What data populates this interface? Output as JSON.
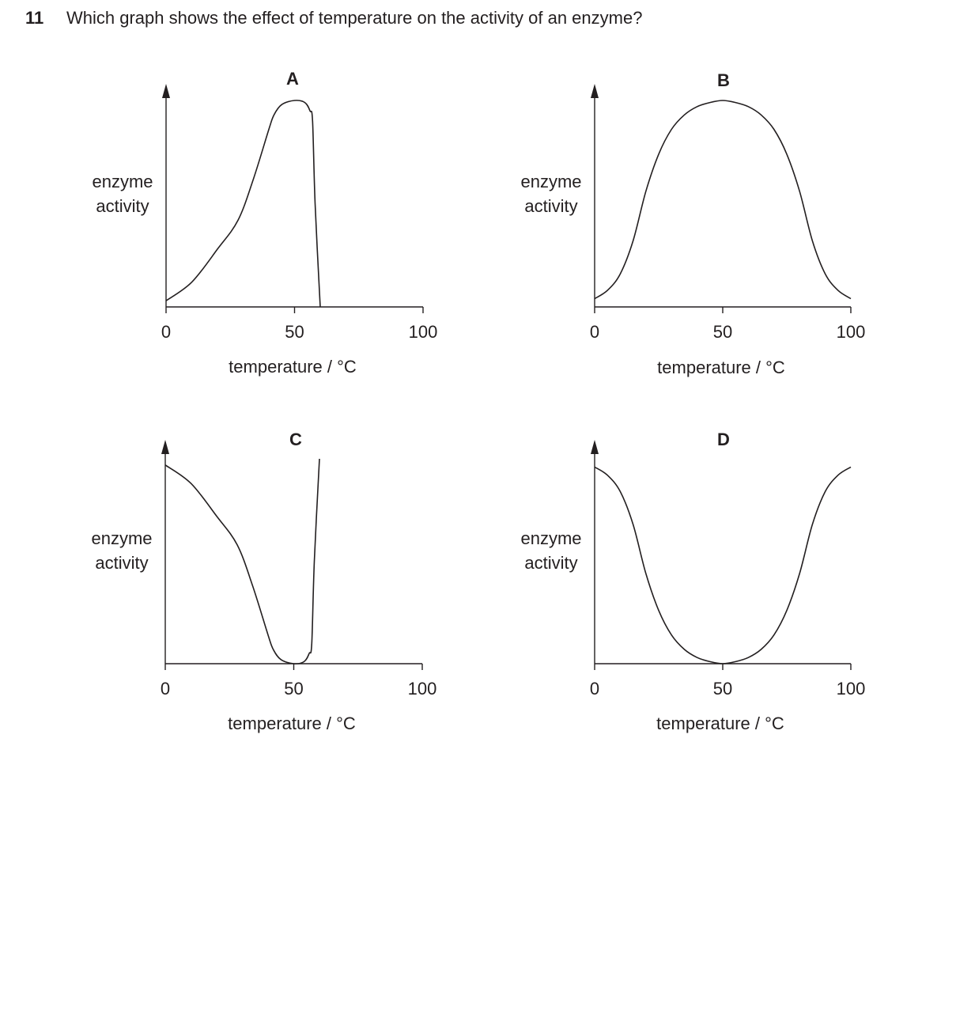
{
  "question": {
    "number": "11",
    "text": "Which graph shows the effect of temperature on the activity of an enzyme?"
  },
  "chart_data": [
    {
      "type": "line",
      "title": "A",
      "xlabel": "temperature / °C",
      "ylabel_lines": [
        "enzyme",
        "activity"
      ],
      "xticks": [
        0,
        50,
        100
      ],
      "xlim": [
        0,
        100
      ],
      "ylim": [
        0,
        1
      ],
      "series": [
        {
          "x": [
            0,
            10,
            20,
            28,
            34,
            40,
            42,
            45,
            50,
            54,
            56,
            57,
            58,
            60
          ],
          "values": [
            0.03,
            0.12,
            0.28,
            0.42,
            0.62,
            0.86,
            0.93,
            0.98,
            1.0,
            0.99,
            0.95,
            0.9,
            0.5,
            0.0
          ]
        }
      ]
    },
    {
      "type": "line",
      "title": "B",
      "xlabel": "temperature / °C",
      "ylabel_lines": [
        "enzyme",
        "activity"
      ],
      "xticks": [
        0,
        50,
        100
      ],
      "xlim": [
        0,
        100
      ],
      "ylim": [
        0,
        1
      ],
      "series": [
        {
          "x": [
            0,
            5,
            10,
            15,
            20,
            25,
            30,
            35,
            40,
            45,
            50,
            55,
            60,
            65,
            70,
            75,
            80,
            85,
            90,
            95,
            100
          ],
          "values": [
            0.04,
            0.08,
            0.16,
            0.32,
            0.56,
            0.74,
            0.86,
            0.93,
            0.97,
            0.99,
            1.0,
            0.99,
            0.97,
            0.93,
            0.86,
            0.74,
            0.56,
            0.32,
            0.16,
            0.08,
            0.04
          ]
        }
      ]
    },
    {
      "type": "line",
      "title": "C",
      "xlabel": "temperature / °C",
      "ylabel_lines": [
        "enzyme",
        "activity"
      ],
      "xticks": [
        0,
        50,
        100
      ],
      "xlim": [
        0,
        100
      ],
      "ylim": [
        0,
        1
      ],
      "series": [
        {
          "x": [
            0,
            10,
            20,
            28,
            34,
            40,
            42,
            45,
            50,
            54,
            56,
            57,
            58,
            60
          ],
          "values": [
            0.97,
            0.88,
            0.72,
            0.58,
            0.38,
            0.14,
            0.07,
            0.02,
            0.0,
            0.01,
            0.05,
            0.1,
            0.5,
            1.0
          ]
        }
      ]
    },
    {
      "type": "line",
      "title": "D",
      "xlabel": "temperature / °C",
      "ylabel_lines": [
        "enzyme",
        "activity"
      ],
      "xticks": [
        0,
        50,
        100
      ],
      "xlim": [
        0,
        100
      ],
      "ylim": [
        0,
        1
      ],
      "series": [
        {
          "x": [
            0,
            5,
            10,
            15,
            20,
            25,
            30,
            35,
            40,
            45,
            50,
            55,
            60,
            65,
            70,
            75,
            80,
            85,
            90,
            95,
            100
          ],
          "values": [
            0.96,
            0.92,
            0.84,
            0.68,
            0.44,
            0.26,
            0.14,
            0.07,
            0.03,
            0.01,
            0.0,
            0.01,
            0.03,
            0.07,
            0.14,
            0.26,
            0.44,
            0.68,
            0.84,
            0.92,
            0.96
          ]
        }
      ]
    }
  ]
}
